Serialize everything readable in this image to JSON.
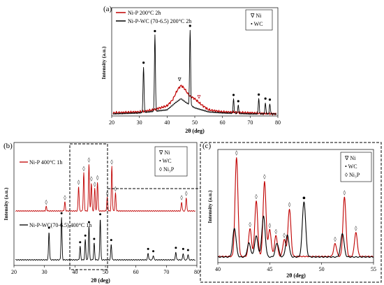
{
  "chart_data": [
    {
      "panel": "(a)",
      "type": "line",
      "xlabel": "2θ (deg)",
      "ylabel": "Intensity (a.u.)",
      "xlim": [
        20,
        80
      ],
      "xticks": [
        "20",
        "30",
        "40",
        "50",
        "60",
        "70",
        "80"
      ],
      "series": [
        {
          "name": "Ni-P 200°C 2h",
          "color": "#c00000",
          "x": [
            20,
            30,
            35,
            40,
            42,
            44,
            45,
            46,
            48,
            50,
            52,
            55,
            60,
            70,
            80
          ],
          "y": [
            0.03,
            0.04,
            0.06,
            0.1,
            0.16,
            0.27,
            0.3,
            0.28,
            0.2,
            0.17,
            0.12,
            0.06,
            0.04,
            0.03,
            0.02
          ]
        },
        {
          "name": "Ni-P-WC (70-6.5) 200°C 2h",
          "color": "#000000",
          "baseline_x": [
            20,
            30,
            40,
            43,
            45,
            47,
            50,
            55,
            60,
            70,
            80
          ],
          "baseline_y": [
            0.02,
            0.03,
            0.06,
            0.13,
            0.17,
            0.13,
            0.08,
            0.04,
            0.03,
            0.02,
            0.02
          ],
          "peaks": [
            [
              31.5,
              0.45
            ],
            [
              35.6,
              0.75
            ],
            [
              48.3,
              0.74
            ],
            [
              64.0,
              0.14
            ],
            [
              65.7,
              0.08
            ],
            [
              73.1,
              0.15
            ],
            [
              75.5,
              0.11
            ],
            [
              77.1,
              0.1
            ]
          ]
        }
      ],
      "legend_markers": [
        "∇ Ni",
        "• WC"
      ],
      "annotations": [
        "∇",
        "∇"
      ]
    },
    {
      "panel": "(b)",
      "type": "line",
      "xlabel": "2θ (deg)",
      "ylabel": "Intensity (a.u.)",
      "xlim": [
        20,
        80
      ],
      "xticks": [
        "20",
        "30",
        "40",
        "50",
        "60",
        "70",
        "80"
      ],
      "series": [
        {
          "name": "Ni-P 400°C 1h",
          "color": "#c00000",
          "peaks": [
            [
              30.6,
              0.04
            ],
            [
              36.7,
              0.08
            ],
            [
              41.2,
              0.22
            ],
            [
              42.9,
              0.34
            ],
            [
              44.6,
              0.42
            ],
            [
              45.4,
              0.25
            ],
            [
              46.5,
              0.2
            ],
            [
              47.4,
              0.26
            ],
            [
              50.6,
              0.12
            ],
            [
              52.1,
              0.4
            ],
            [
              53.3,
              0.16
            ],
            [
              75.0,
              0.08
            ],
            [
              76.5,
              0.12
            ]
          ]
        },
        {
          "name": "Ni-P-WC(70-6.5) 400°C 1h",
          "color": "#000000",
          "peaks": [
            [
              31.5,
              0.25
            ],
            [
              35.6,
              0.38
            ],
            [
              41.7,
              0.12
            ],
            [
              43.4,
              0.18
            ],
            [
              44.6,
              0.3
            ],
            [
              46.3,
              0.15
            ],
            [
              48.3,
              0.37
            ],
            [
              51.9,
              0.14
            ],
            [
              64.0,
              0.06
            ],
            [
              65.7,
              0.04
            ],
            [
              73.1,
              0.07
            ],
            [
              75.5,
              0.06
            ],
            [
              77.1,
              0.05
            ]
          ]
        }
      ],
      "legend_markers": [
        "∇ Ni",
        "• WC",
        "◊ Ni₃P"
      ]
    },
    {
      "panel": "(c)",
      "type": "line",
      "xlabel": "2θ (deg)",
      "ylabel": "Intensity (a.u.)",
      "xlim": [
        40,
        55
      ],
      "xticks": [
        "40",
        "45",
        "50",
        "55"
      ],
      "series": [
        {
          "name": "Ni-P 400°C 1h",
          "color": "#c00000",
          "peaks": [
            [
              41.8,
              1.0
            ],
            [
              43.1,
              0.28
            ],
            [
              43.7,
              0.56
            ],
            [
              44.5,
              0.76
            ],
            [
              45.0,
              0.27
            ],
            [
              45.6,
              0.21
            ],
            [
              46.4,
              0.17
            ],
            [
              46.9,
              0.48
            ],
            [
              51.3,
              0.13
            ],
            [
              52.2,
              0.6
            ],
            [
              53.3,
              0.24
            ]
          ]
        },
        {
          "name": "Ni-P-WC(70-6.5) 400°C 1h",
          "color": "#000000",
          "peaks": [
            [
              41.6,
              0.29
            ],
            [
              43.0,
              0.14
            ],
            [
              43.7,
              0.21
            ],
            [
              44.4,
              0.41
            ],
            [
              45.7,
              0.14
            ],
            [
              46.7,
              0.22
            ],
            [
              48.3,
              0.56
            ],
            [
              52.0,
              0.24
            ]
          ]
        }
      ],
      "legend_markers": [
        "∇ Ni",
        "• WC",
        "◊ Ni₃P"
      ]
    }
  ],
  "figure": {
    "panel_a": "(a)",
    "panel_b": "(b)",
    "panel_c": "(c)",
    "legend_a": {
      "s1": "Ni-P 200°C 2h",
      "s2": "Ni-P-WC (70-6.5) 200°C 2h",
      "m1": "∇ Ni",
      "m2": "• WC"
    },
    "legend_b": {
      "m1": "∇ Ni",
      "m2": "• WC",
      "m3": "◊ Ni₃P",
      "s1": "Ni-P 400°C 1h",
      "s2": "Ni-P-WC(70-6.5) 400°C 1h"
    },
    "legend_c": {
      "m1": "∇ Ni",
      "m2": "• WC",
      "m3": "◊ Ni₃P"
    },
    "ylabel": "Intensity (a.u.)",
    "xlabel": "2θ (deg)"
  }
}
